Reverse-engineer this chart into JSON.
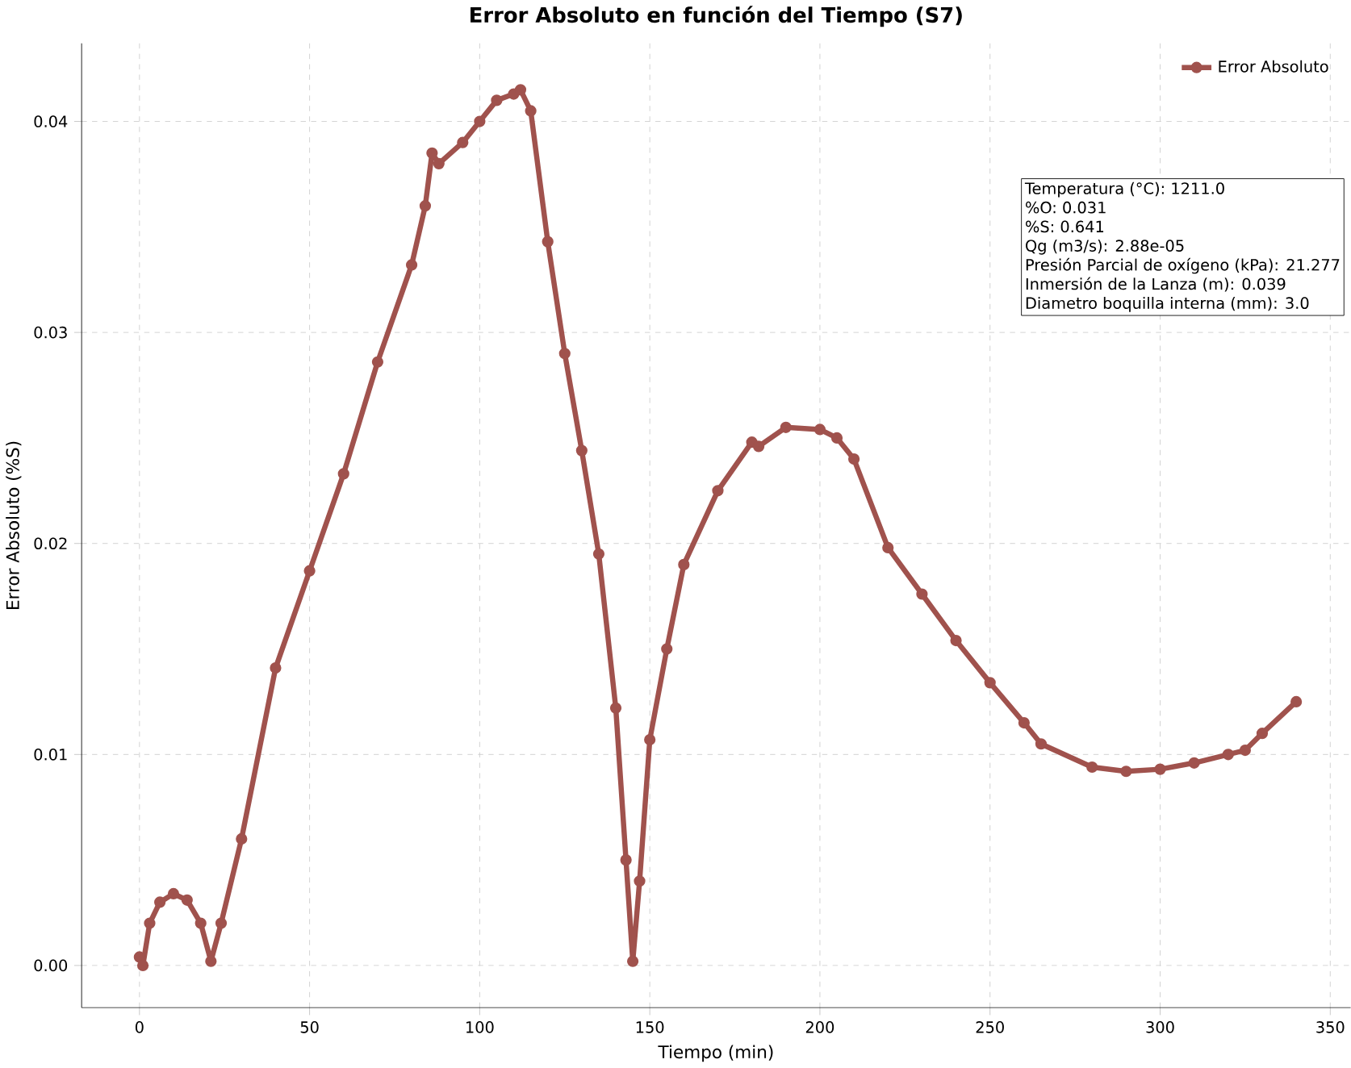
{
  "chart_data": {
    "type": "line",
    "title": "Error Absoluto en función del Tiempo (S7)",
    "xlabel": "Tiempo (min)",
    "ylabel": "Error Absoluto (%S)",
    "x": [
      0,
      1,
      3,
      6,
      10,
      14,
      18,
      21,
      24,
      30,
      40,
      50,
      60,
      70,
      80,
      84,
      86,
      88,
      95,
      100,
      105,
      110,
      112,
      115,
      120,
      125,
      130,
      135,
      140,
      143,
      145,
      147,
      150,
      155,
      160,
      170,
      180,
      182,
      190,
      200,
      205,
      210,
      220,
      230,
      240,
      250,
      260,
      265,
      280,
      290,
      300,
      310,
      320,
      325,
      330,
      340
    ],
    "series": [
      {
        "name": "Error Absoluto",
        "color": "#a0524d",
        "values": [
          0.0004,
          0.0,
          0.002,
          0.003,
          0.0034,
          0.0031,
          0.002,
          0.0002,
          0.002,
          0.006,
          0.0141,
          0.0187,
          0.0233,
          0.0286,
          0.0332,
          0.036,
          0.0385,
          0.038,
          0.039,
          0.04,
          0.041,
          0.0413,
          0.0415,
          0.0405,
          0.0343,
          0.029,
          0.0244,
          0.0195,
          0.0122,
          0.005,
          0.0002,
          0.004,
          0.0107,
          0.015,
          0.019,
          0.0225,
          0.0248,
          0.0246,
          0.0255,
          0.0254,
          0.025,
          0.024,
          0.0198,
          0.0176,
          0.0154,
          0.0134,
          0.0115,
          0.0105,
          0.0094,
          0.0092,
          0.0093,
          0.0096,
          0.01,
          0.0102,
          0.011,
          0.0125
        ]
      }
    ],
    "xlim": [
      -17,
      356
    ],
    "ylim": [
      -0.002,
      0.0437
    ],
    "xticks": [
      0,
      50,
      100,
      150,
      200,
      250,
      300,
      350
    ],
    "yticks": [
      {
        "value": 0,
        "label": "0.00"
      },
      {
        "value": 0.01,
        "label": "0.01"
      },
      {
        "value": 0.02,
        "label": "0.02"
      },
      {
        "value": 0.03,
        "label": "0.03"
      },
      {
        "value": 0.04,
        "label": "0.04"
      }
    ],
    "grid": true,
    "legend": "top right",
    "marker": "circle",
    "line_style": "solid",
    "annotations": [
      "Temperatura (°C): 1211.0",
      "%O: 0.031",
      "%S: 0.641",
      "Qg (m3/s): 2.88e-05",
      "Presión Parcial de oxígeno (kPa): 21.277",
      "Inmersión de la Lanza (m): 0.039",
      "Diametro boquilla interna (mm): 3.0"
    ]
  }
}
